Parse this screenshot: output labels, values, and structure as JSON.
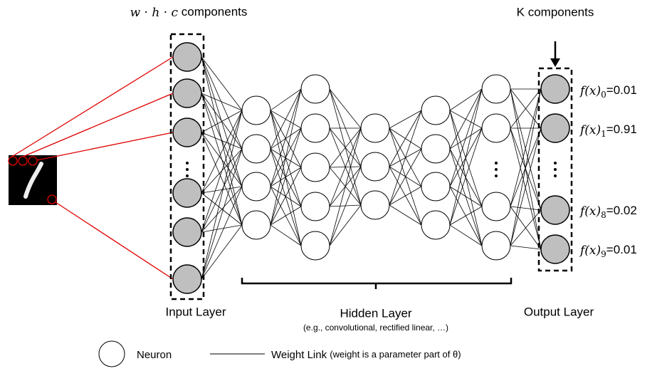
{
  "input_label": {
    "formula": "w · h · c",
    "text": "components"
  },
  "output_label": "K components",
  "outputs": [
    {
      "function": "f(x)",
      "index": "0",
      "value": "=0.01"
    },
    {
      "function": "f(x)",
      "index": "1",
      "value": "=0.91"
    },
    {
      "function": "f(x)",
      "index": "8",
      "value": "=0.02"
    },
    {
      "function": "f(x)",
      "index": "9",
      "value": "=0.01"
    }
  ],
  "layers": {
    "input": "Input Layer",
    "hidden": "Hidden Layer",
    "hidden_note": "(e.g., convolutional, rectified linear, …)",
    "output": "Output Layer"
  },
  "legend": {
    "neuron": "Neuron",
    "link": "Weight Link",
    "link_note": "(weight is a parameter part of θ)"
  }
}
